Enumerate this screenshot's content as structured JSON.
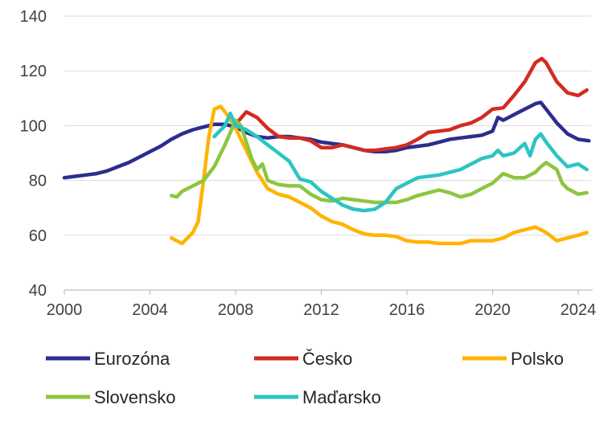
{
  "chart_data": {
    "type": "line",
    "title": "",
    "xlabel": "",
    "ylabel": "",
    "xlim": [
      2000,
      2024.6
    ],
    "ylim": [
      40,
      140
    ],
    "xticks": [
      2000,
      2004,
      2008,
      2012,
      2016,
      2020,
      2024
    ],
    "yticks": [
      40,
      60,
      80,
      100,
      120,
      140
    ],
    "grid": "horizontal",
    "legend_position": "bottom",
    "series": [
      {
        "name": "Eurozóna",
        "color": "#2B2D8E",
        "x": [
          2000,
          2000.5,
          2001,
          2001.5,
          2002,
          2002.5,
          2003,
          2003.5,
          2004,
          2004.5,
          2005,
          2005.5,
          2006,
          2006.5,
          2007,
          2007.5,
          2008,
          2008.5,
          2009,
          2009.5,
          2010,
          2010.5,
          2011,
          2011.5,
          2012,
          2012.5,
          2013,
          2013.5,
          2014,
          2014.5,
          2015,
          2015.5,
          2016,
          2016.5,
          2017,
          2017.5,
          2018,
          2018.5,
          2019,
          2019.5,
          2020,
          2020.25,
          2020.5,
          2021,
          2021.5,
          2022,
          2022.25,
          2022.5,
          2023,
          2023.5,
          2024,
          2024.5
        ],
        "values": [
          81,
          81.5,
          82,
          82.5,
          83.5,
          85,
          86.5,
          88.5,
          90.5,
          92.5,
          95,
          97,
          98.5,
          99.5,
          100.5,
          100.5,
          99.5,
          97.5,
          96,
          95.5,
          96,
          96,
          95.5,
          95,
          94,
          93.5,
          93,
          92,
          91,
          90.5,
          90.5,
          91,
          92,
          92.5,
          93,
          94,
          95,
          95.5,
          96,
          96.5,
          98,
          103,
          102,
          104,
          106,
          108,
          108.5,
          106,
          101,
          97,
          95,
          94.5
        ]
      },
      {
        "name": "Česko",
        "color": "#D22B22",
        "x": [
          2008,
          2008.5,
          2009,
          2009.5,
          2010,
          2010.5,
          2011,
          2011.5,
          2012,
          2012.5,
          2013,
          2013.5,
          2014,
          2014.5,
          2015,
          2015.5,
          2016,
          2016.5,
          2017,
          2017.5,
          2018,
          2018.5,
          2019,
          2019.5,
          2020,
          2020.5,
          2021,
          2021.5,
          2022,
          2022.3,
          2022.5,
          2023,
          2023.5,
          2024,
          2024.4
        ],
        "values": [
          100.5,
          105,
          103,
          99,
          96,
          95.5,
          95.5,
          94.5,
          92,
          92,
          93,
          92,
          91,
          91,
          91.5,
          92,
          93,
          95,
          97.5,
          98,
          98.5,
          100,
          101,
          103,
          106,
          106.5,
          111,
          116,
          123,
          124.5,
          123,
          116,
          112,
          111,
          113
        ]
      },
      {
        "name": "Polsko",
        "color": "#FFB400",
        "x": [
          2005,
          2005.5,
          2006,
          2006.25,
          2006.5,
          2006.75,
          2007,
          2007.3,
          2007.6,
          2008,
          2008.5,
          2009,
          2009.5,
          2010,
          2010.5,
          2011,
          2011.5,
          2012,
          2012.5,
          2013,
          2013.5,
          2014,
          2014.5,
          2015,
          2015.5,
          2016,
          2016.5,
          2017,
          2017.5,
          2018,
          2018.5,
          2019,
          2019.5,
          2020,
          2020.5,
          2021,
          2021.5,
          2022,
          2022.5,
          2023,
          2023.5,
          2024,
          2024.4
        ],
        "values": [
          59,
          57,
          61,
          65,
          80,
          96,
          106,
          107,
          104,
          99,
          91,
          83,
          77,
          75,
          74,
          72,
          70,
          67,
          65,
          64,
          62,
          60.5,
          60,
          60,
          59.5,
          58,
          57.5,
          57.5,
          57,
          57,
          57,
          58,
          58,
          58,
          59,
          61,
          62,
          63,
          61,
          58,
          59,
          60,
          61
        ]
      },
      {
        "name": "Slovensko",
        "color": "#8CC63F",
        "x": [
          2005,
          2005.25,
          2005.5,
          2006,
          2006.5,
          2007,
          2007.5,
          2008,
          2008.25,
          2008.5,
          2008.75,
          2009,
          2009.25,
          2009.5,
          2010,
          2010.5,
          2011,
          2011.5,
          2012,
          2012.5,
          2013,
          2013.5,
          2014,
          2014.5,
          2015,
          2015.5,
          2016,
          2016.5,
          2017,
          2017.5,
          2018,
          2018.5,
          2019,
          2019.5,
          2020,
          2020.5,
          2021,
          2021.5,
          2022,
          2022.25,
          2022.5,
          2023,
          2023.25,
          2023.5,
          2024,
          2024.4
        ],
        "values": [
          74.5,
          74,
          76,
          78,
          80,
          85,
          93,
          102,
          100,
          94,
          88,
          84,
          86,
          80,
          78.5,
          78,
          78,
          75,
          73,
          72.5,
          73.5,
          73,
          72.5,
          72,
          72,
          72,
          73,
          74.5,
          75.5,
          76.5,
          75.5,
          74,
          75,
          77,
          79,
          82.5,
          81,
          81,
          83,
          85,
          86.5,
          84,
          79,
          77,
          75,
          75.5
        ]
      },
      {
        "name": "Maďarsko",
        "color": "#2CC4C4",
        "x": [
          2007,
          2007.5,
          2007.75,
          2008,
          2008.5,
          2009,
          2009.5,
          2010,
          2010.5,
          2011,
          2011.5,
          2012,
          2012.5,
          2013,
          2013.5,
          2014,
          2014.5,
          2015,
          2015.5,
          2016,
          2016.5,
          2017,
          2017.5,
          2018,
          2018.5,
          2019,
          2019.5,
          2020,
          2020.25,
          2020.5,
          2021,
          2021.5,
          2021.75,
          2022,
          2022.25,
          2022.5,
          2023,
          2023.5,
          2024,
          2024.4
        ],
        "values": [
          96,
          100,
          104.5,
          100,
          98.5,
          96,
          93,
          90,
          87,
          80.5,
          79.5,
          76,
          73.5,
          71,
          69.5,
          69,
          69.5,
          72,
          77,
          79,
          81,
          81.5,
          82,
          83,
          84,
          86,
          88,
          89,
          91,
          89,
          90,
          93.5,
          89,
          95,
          97,
          94,
          89,
          85,
          86,
          84
        ]
      }
    ]
  }
}
